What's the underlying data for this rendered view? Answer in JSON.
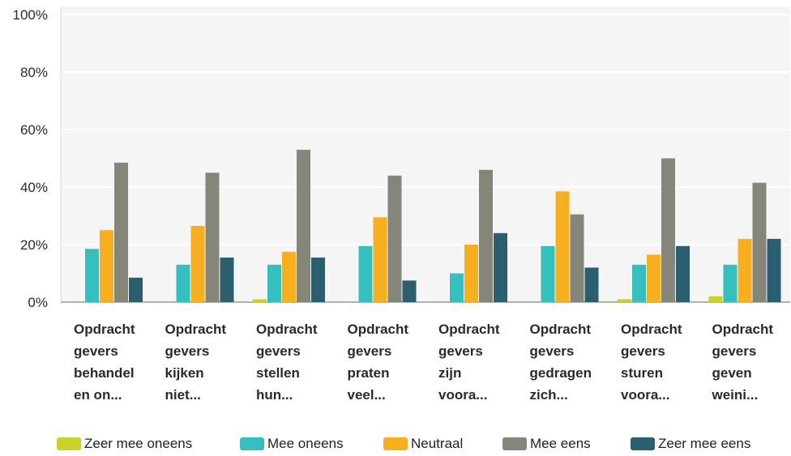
{
  "chart_data": {
    "type": "bar",
    "categories": [
      [
        "Opdracht",
        "gevers",
        "behandel",
        "en on..."
      ],
      [
        "Opdracht",
        "gevers",
        "kijken",
        "niet..."
      ],
      [
        "Opdracht",
        "gevers",
        "stellen",
        "hun..."
      ],
      [
        "Opdracht",
        "gevers",
        "praten",
        "veel..."
      ],
      [
        "Opdracht",
        "gevers",
        "zijn",
        "voora..."
      ],
      [
        "Opdracht",
        "gevers",
        "gedragen",
        "zich..."
      ],
      [
        "Opdracht",
        "gevers",
        "sturen",
        "voora..."
      ],
      [
        "Opdracht",
        "gevers",
        "geven",
        "weini..."
      ]
    ],
    "series": [
      {
        "name": "Zeer mee oneens",
        "color": "#c9d22a",
        "values": [
          0,
          0,
          1,
          0,
          0,
          0,
          1,
          2
        ]
      },
      {
        "name": "Mee oneens",
        "color": "#35bfbf",
        "values": [
          18.5,
          13,
          13,
          19.5,
          10,
          19.5,
          13,
          13
        ]
      },
      {
        "name": "Neutraal",
        "color": "#f7ae1f",
        "values": [
          25,
          26.5,
          17.5,
          29.5,
          20,
          38.5,
          16.5,
          22
        ]
      },
      {
        "name": "Mee eens",
        "color": "#85857a",
        "values": [
          48.5,
          45,
          53,
          44,
          46,
          30.5,
          50,
          41.5
        ]
      },
      {
        "name": "Zeer mee eens",
        "color": "#2b5e6e",
        "values": [
          8.5,
          15.5,
          15.5,
          7.5,
          24,
          12,
          19.5,
          22
        ]
      }
    ],
    "ylim": [
      0,
      100
    ],
    "yticks": [
      "0%",
      "20%",
      "40%",
      "60%",
      "80%",
      "100%"
    ],
    "ytick_values": [
      0,
      20,
      40,
      60,
      80,
      100
    ],
    "grid": true,
    "legend_position": "bottom"
  }
}
